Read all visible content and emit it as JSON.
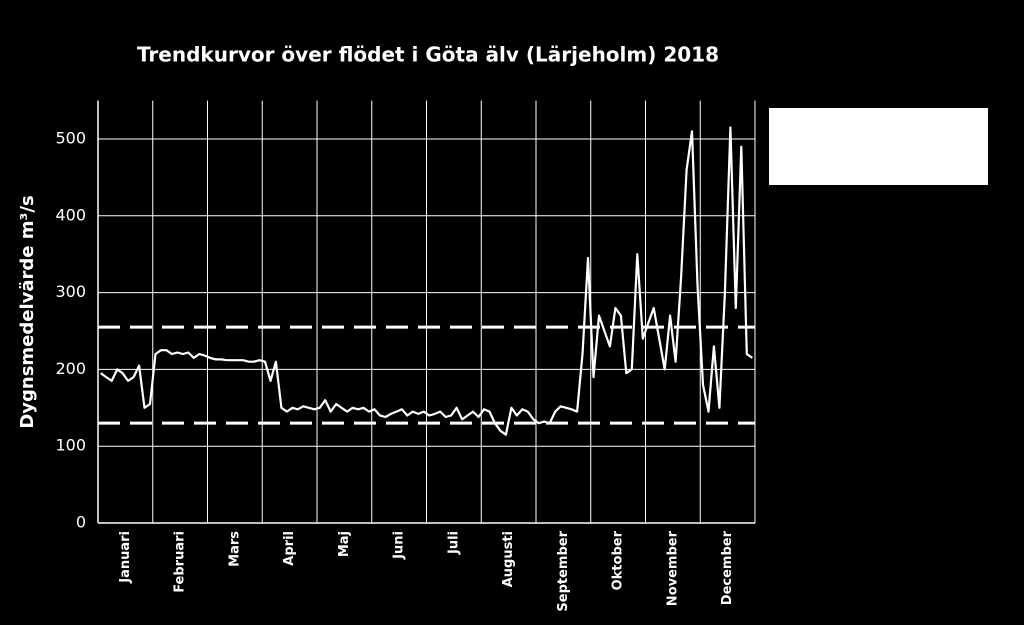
{
  "chart_data": {
    "type": "line",
    "title": "Trendkurvor över flödet i Göta älv (Lärjeholm) 2018",
    "y_label": "Dygnsmedelvärde m³/s",
    "categories": [
      "Januari",
      "Februari",
      "Mars",
      "April",
      "Maj",
      "Juni",
      "Juli",
      "Augusti",
      "September",
      "Oktober",
      "November",
      "December"
    ],
    "series": [
      {
        "color": "#ffffff",
        "values": [
          [
            195,
            190,
            185,
            200,
            195,
            185,
            190,
            205,
            150,
            155
          ],
          [
            220,
            225,
            225,
            220,
            222,
            220,
            222,
            215,
            220,
            218
          ],
          [
            215,
            213,
            213,
            212,
            212,
            212,
            212,
            210,
            210,
            212
          ],
          [
            210,
            185,
            210,
            150,
            145,
            150,
            148,
            152,
            150,
            148
          ],
          [
            150,
            160,
            145,
            155,
            150,
            145,
            150,
            148,
            150,
            145
          ],
          [
            148,
            140,
            138,
            142,
            145,
            148,
            140,
            145,
            142,
            145
          ],
          [
            140,
            142,
            145,
            138,
            140,
            150,
            135,
            140,
            145,
            138
          ],
          [
            148,
            145,
            130,
            120,
            115,
            150,
            140,
            148,
            145,
            135
          ],
          [
            130,
            132,
            130,
            145,
            152,
            150,
            148,
            145,
            220,
            345
          ],
          [
            190,
            270,
            250,
            230,
            280,
            270,
            195,
            200,
            350,
            240
          ],
          [
            260,
            280,
            240,
            200,
            270,
            210,
            320,
            460,
            510,
            310
          ],
          [
            180,
            145,
            230,
            150,
            300,
            515,
            280,
            490,
            220,
            215
          ]
        ]
      }
    ],
    "reference_lines": [
      255,
      130
    ],
    "ylim": [
      0,
      550
    ],
    "yticks": [
      0,
      100,
      200,
      300,
      400,
      500
    ],
    "grid": true
  }
}
